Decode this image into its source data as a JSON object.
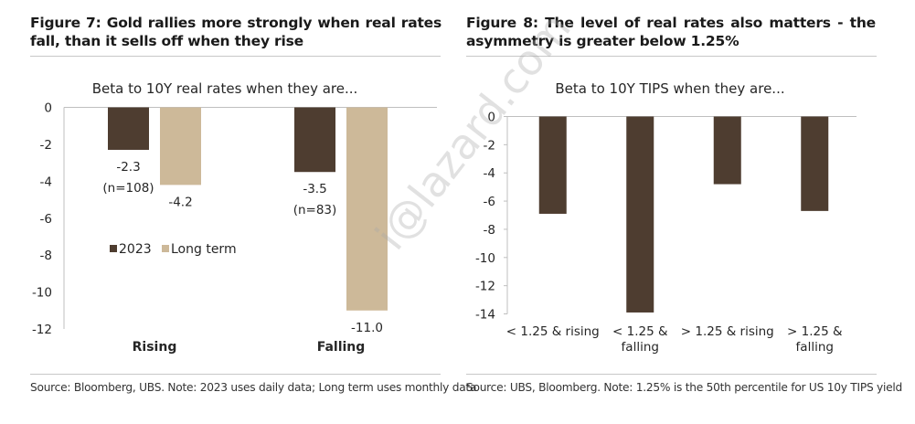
{
  "figures": [
    {
      "title": "Figure 7: Gold rallies more strongly when real rates fall, than it sells off when they rise",
      "source": "Source: Bloomberg, UBS. Note: 2023 uses daily data; Long term uses monthly data"
    },
    {
      "title": "Figure 8: The level of real rates also matters - the asymmetry is greater below 1.25%",
      "source": "Source: UBS, Bloomberg. Note: 1.25% is the 50th percentile for US 10y TIPS yield"
    }
  ],
  "watermark": "i@lazard.com",
  "colors": {
    "dark": "#4e3d30",
    "tan": "#cdb999",
    "axis": "#bfbfbf",
    "text": "#262626"
  },
  "chart_data": [
    {
      "type": "bar",
      "title": "Beta to 10Y real rates when they are...",
      "xlabel": "",
      "ylabel": "",
      "categories": [
        "Rising",
        "Falling"
      ],
      "series": [
        {
          "name": "2023",
          "values": [
            -2.3,
            -3.5
          ],
          "color": "#4e3d30",
          "data_labels": [
            "-2.3",
            "-3.5"
          ],
          "annotations": [
            "(n=108)",
            "(n=83)"
          ]
        },
        {
          "name": "Long term",
          "values": [
            -4.2,
            -11.0
          ],
          "color": "#cdb999",
          "data_labels": [
            "-4.2",
            "-11.0"
          ]
        }
      ],
      "ylim": [
        -12,
        0
      ],
      "yticks": [
        0,
        -2,
        -4,
        -6,
        -8,
        -10,
        -12
      ],
      "ytick_labels": [
        "0",
        "-2",
        "-4",
        "-6",
        "-8",
        "-10",
        "-12"
      ],
      "grid": false,
      "legend": {
        "placement": "inside-left-middle",
        "entries": [
          "2023",
          "Long term"
        ]
      }
    },
    {
      "type": "bar",
      "title": "Beta to 10Y TIPS when they are...",
      "xlabel": "",
      "ylabel": "",
      "categories": [
        "< 1.25 & rising",
        "< 1.25 & falling",
        "> 1.25 & rising",
        "> 1.25 & falling"
      ],
      "category_lines": [
        [
          "< 1.25 & rising"
        ],
        [
          "< 1.25 &",
          "falling"
        ],
        [
          "> 1.25 & rising"
        ],
        [
          "> 1.25 &",
          "falling"
        ]
      ],
      "series": [
        {
          "name": "Beta",
          "values": [
            -6.9,
            -13.9,
            -4.8,
            -6.7
          ],
          "color": "#4e3d30"
        }
      ],
      "ylim": [
        -14,
        0
      ],
      "yticks": [
        0,
        -2,
        -4,
        -6,
        -8,
        -10,
        -12,
        -14
      ],
      "ytick_labels": [
        "0",
        "-2",
        "-4",
        "-6",
        "-8",
        "-10",
        "-12",
        "-14"
      ],
      "grid": false,
      "legend": null
    }
  ]
}
